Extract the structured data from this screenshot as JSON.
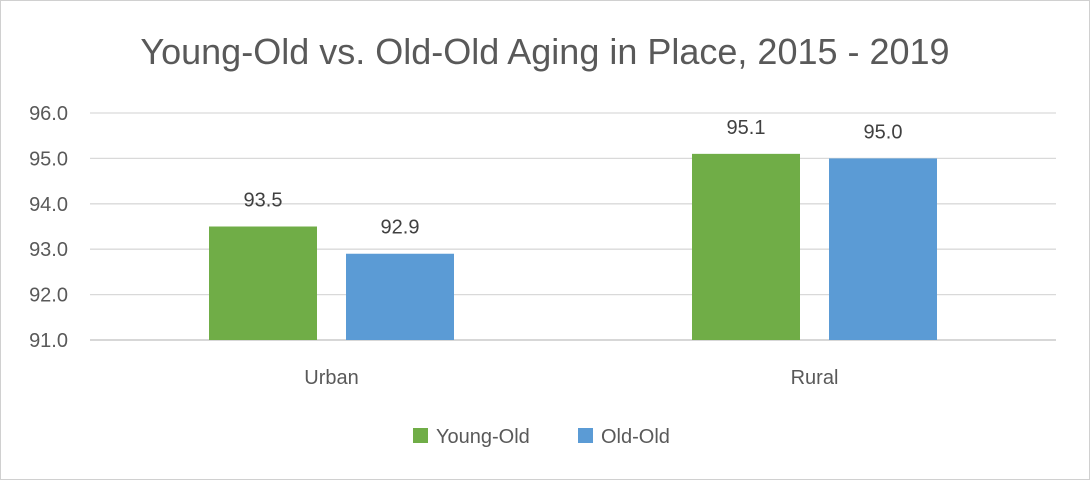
{
  "chart_data": {
    "type": "bar",
    "title": "Young-Old vs. Old-Old Aging in Place, 2015 - 2019",
    "xlabel": "",
    "ylabel": "",
    "categories": [
      "Urban",
      "Rural"
    ],
    "series": [
      {
        "name": "Young-Old",
        "values": [
          93.5,
          95.1
        ],
        "color": "#70ad47"
      },
      {
        "name": "Old-Old",
        "values": [
          92.9,
          95.0
        ],
        "color": "#5b9bd5"
      }
    ],
    "data_labels": [
      [
        "93.5",
        "95.1"
      ],
      [
        "92.9",
        "95.0"
      ]
    ],
    "ylim": [
      91.0,
      96.0
    ],
    "yticks": [
      "91.0",
      "92.0",
      "93.0",
      "94.0",
      "95.0",
      "96.0"
    ],
    "grid": true,
    "legend": "bottom"
  }
}
